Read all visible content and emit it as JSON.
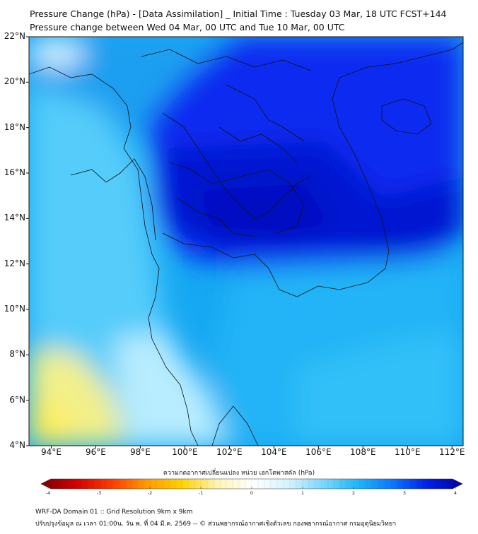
{
  "title": {
    "line1": "Pressure Change (hPa) - [Data Assimilation] _ Initial Time : Tuesday 03 Mar, 18 UTC FCST+144",
    "line2": "Pressure change between Wed 04 Mar, 00 UTC and Tue 10 Mar, 00 UTC"
  },
  "axes": {
    "lat_labels": [
      "22°N",
      "20°N",
      "18°N",
      "16°N",
      "14°N",
      "12°N",
      "10°N",
      "8°N",
      "6°N",
      "4°N"
    ],
    "lon_labels": [
      "94°E",
      "96°E",
      "98°E",
      "100°E",
      "102°E",
      "104°E",
      "106°E",
      "108°E",
      "110°E",
      "112°E"
    ],
    "lat_range": [
      4,
      22
    ],
    "lon_range": [
      93,
      112.5
    ]
  },
  "colorbar": {
    "label": "ความกดอากาศเปลี่ยนแปลง หน่วย เฮกโตพาสคัล (hPa)",
    "ticks": [
      "-4",
      "-3",
      "-2",
      "-1",
      "0",
      "1",
      "2",
      "3",
      "4"
    ],
    "range": [
      -4,
      4
    ],
    "colors": [
      "#7a0000",
      "#d40000",
      "#ff3a00",
      "#ff9a00",
      "#ffd200",
      "#fff4b0",
      "#ffffff",
      "#d8f4ff",
      "#7fd8ff",
      "#20b8f8",
      "#0a78ff",
      "#0020e8",
      "#0000a0"
    ]
  },
  "footer": {
    "line1": "WRF-DA Domain 01 :: Grid Resolution 9km x 9km",
    "line2": "ปรับปรุงข้อมูล ณ เวลา 01:00น. วัน พ. ที่ 04 มี.ค. 2569 -- © ส่วนพยากรณ์อากาศเชิงตัวเลข กองพยากรณ์อากาศ กรมอุตุนิยมวิทยา"
  }
}
